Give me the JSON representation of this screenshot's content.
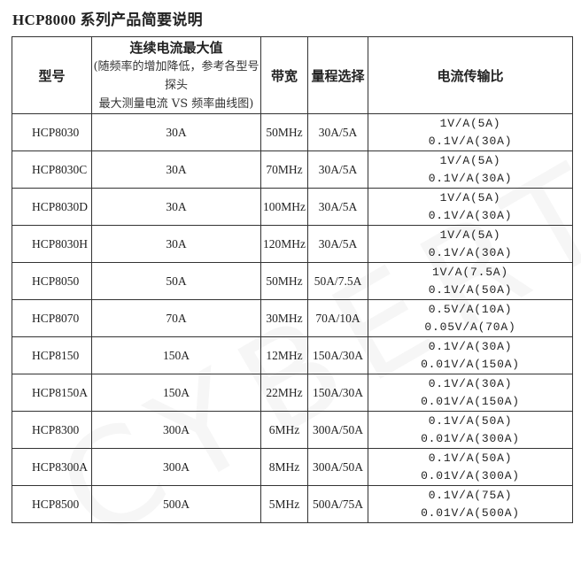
{
  "title": "HCP8000 系列产品简要说明",
  "watermark": "CYBERTEK",
  "headers": {
    "model": "型号",
    "max_current": "连续电流最大值",
    "max_current_note_1": "(随频率的增加降低，参考各型号探头",
    "max_current_note_2": "最大测量电流 VS 频率曲线图)",
    "bandwidth": "带宽",
    "range": "量程选择",
    "ratio": "电流传输比"
  },
  "rows": [
    {
      "model": "HCP8030",
      "current": "30A",
      "bw": "50MHz",
      "range": "30A/5A",
      "r1": "1V/A(5A)",
      "r2": "0.1V/A(30A)"
    },
    {
      "model": "HCP8030C",
      "current": "30A",
      "bw": "70MHz",
      "range": "30A/5A",
      "r1": "1V/A(5A)",
      "r2": "0.1V/A(30A)"
    },
    {
      "model": "HCP8030D",
      "current": "30A",
      "bw": "100MHz",
      "range": "30A/5A",
      "r1": "1V/A(5A)",
      "r2": "0.1V/A(30A)"
    },
    {
      "model": "HCP8030H",
      "current": "30A",
      "bw": "120MHz",
      "range": "30A/5A",
      "r1": "1V/A(5A)",
      "r2": "0.1V/A(30A)"
    },
    {
      "model": "HCP8050",
      "current": "50A",
      "bw": "50MHz",
      "range": "50A/7.5A",
      "r1": "1V/A(7.5A)",
      "r2": "0.1V/A(50A)"
    },
    {
      "model": "HCP8070",
      "current": "70A",
      "bw": "30MHz",
      "range": "70A/10A",
      "r1": "0.5V/A(10A)",
      "r2": "0.05V/A(70A)"
    },
    {
      "model": "HCP8150",
      "current": "150A",
      "bw": "12MHz",
      "range": "150A/30A",
      "r1": "0.1V/A(30A)",
      "r2": "0.01V/A(150A)"
    },
    {
      "model": "HCP8150A",
      "current": "150A",
      "bw": "22MHz",
      "range": "150A/30A",
      "r1": "0.1V/A(30A)",
      "r2": "0.01V/A(150A)"
    },
    {
      "model": "HCP8300",
      "current": "300A",
      "bw": "6MHz",
      "range": "300A/50A",
      "r1": "0.1V/A(50A)",
      "r2": "0.01V/A(300A)"
    },
    {
      "model": "HCP8300A",
      "current": "300A",
      "bw": "8MHz",
      "range": "300A/50A",
      "r1": "0.1V/A(50A)",
      "r2": "0.01V/A(300A)"
    },
    {
      "model": "HCP8500",
      "current": "500A",
      "bw": "5MHz",
      "range": "500A/75A",
      "r1": "0.1V/A(75A)",
      "r2": "0.01V/A(500A)"
    }
  ]
}
